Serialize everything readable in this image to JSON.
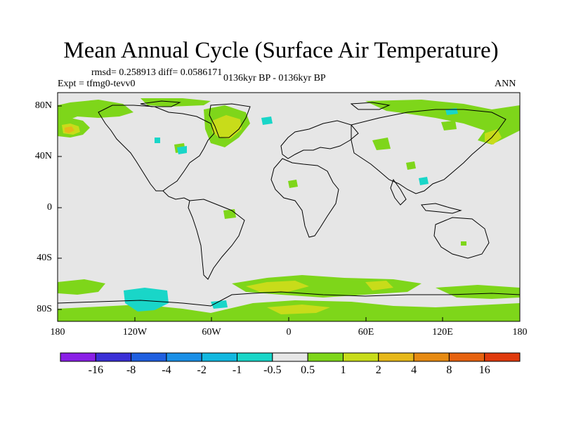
{
  "title": "Mean Annual Cycle (Surface Air Temperature)",
  "stats": "rmsd= 0.258913 diff= 0.0586171",
  "experiment": "Expt = tfmg0-tevv0",
  "period": "0136kyr BP - 0136kyr BP",
  "season": "ANN",
  "lat_labels": [
    "80N",
    "40N",
    "0",
    "40S",
    "80S"
  ],
  "lon_labels": [
    "180",
    "120W",
    "60W",
    "0",
    "60E",
    "120E",
    "180"
  ],
  "colorbar": {
    "labels": [
      "-16",
      "-8",
      "-4",
      "-2",
      "-1",
      "-0.5",
      "0.5",
      "1",
      "2",
      "4",
      "8",
      "16"
    ],
    "colors": [
      "#8a1fe6",
      "#3a2fd6",
      "#1f5fe0",
      "#1a8fe6",
      "#12b8e0",
      "#19d6c8",
      "#e6e6e6",
      "#7ed61a",
      "#c8dc1a",
      "#e6b81a",
      "#e68a12",
      "#e6620f",
      "#e03a0c"
    ]
  }
}
